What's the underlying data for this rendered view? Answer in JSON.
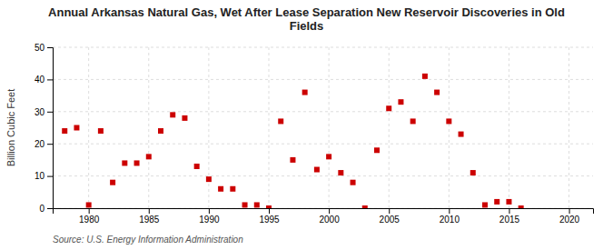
{
  "chart_data": {
    "type": "scatter",
    "title": "Annual Arkansas Natural Gas, Wet After Lease Separation New Reservoir Discoveries in Old\nFields",
    "ylabel": "Billion Cubic Feet",
    "source": "Source: U.S. Energy Information Administration",
    "color": "#cc0000",
    "marker": "square",
    "grid": true,
    "xlim": [
      1977,
      2022
    ],
    "ylim": [
      0,
      50
    ],
    "xticks": [
      1980,
      1985,
      1990,
      1995,
      2000,
      2005,
      2010,
      2015,
      2020
    ],
    "yticks": [
      0,
      10,
      20,
      30,
      40,
      50
    ],
    "x": [
      1978,
      1979,
      1980,
      1981,
      1982,
      1983,
      1984,
      1985,
      1986,
      1987,
      1988,
      1989,
      1990,
      1991,
      1992,
      1993,
      1994,
      1995,
      1996,
      1997,
      1998,
      1999,
      2000,
      2001,
      2002,
      2003,
      2004,
      2005,
      2006,
      2007,
      2008,
      2009,
      2010,
      2011,
      2012,
      2013,
      2014,
      2015,
      2016
    ],
    "values": [
      24,
      25,
      1,
      24,
      8,
      14,
      14,
      16,
      24,
      29,
      28,
      13,
      9,
      6,
      6,
      1,
      1,
      0,
      27,
      15,
      36,
      12,
      16,
      11,
      8,
      0,
      18,
      31,
      33,
      27,
      41,
      36,
      27,
      23,
      11,
      1,
      2,
      2,
      0
    ]
  }
}
